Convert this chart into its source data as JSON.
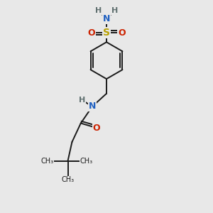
{
  "bg_color": "#e8e8e8",
  "bond_color": "#1a1a1a",
  "N_color": "#2060c0",
  "O_color": "#cc2200",
  "S_color": "#b8a000",
  "H_color": "#607070",
  "fig_width": 3.0,
  "fig_height": 3.0,
  "dpi": 100,
  "xlim": [
    0,
    10
  ],
  "ylim": [
    0,
    10
  ]
}
